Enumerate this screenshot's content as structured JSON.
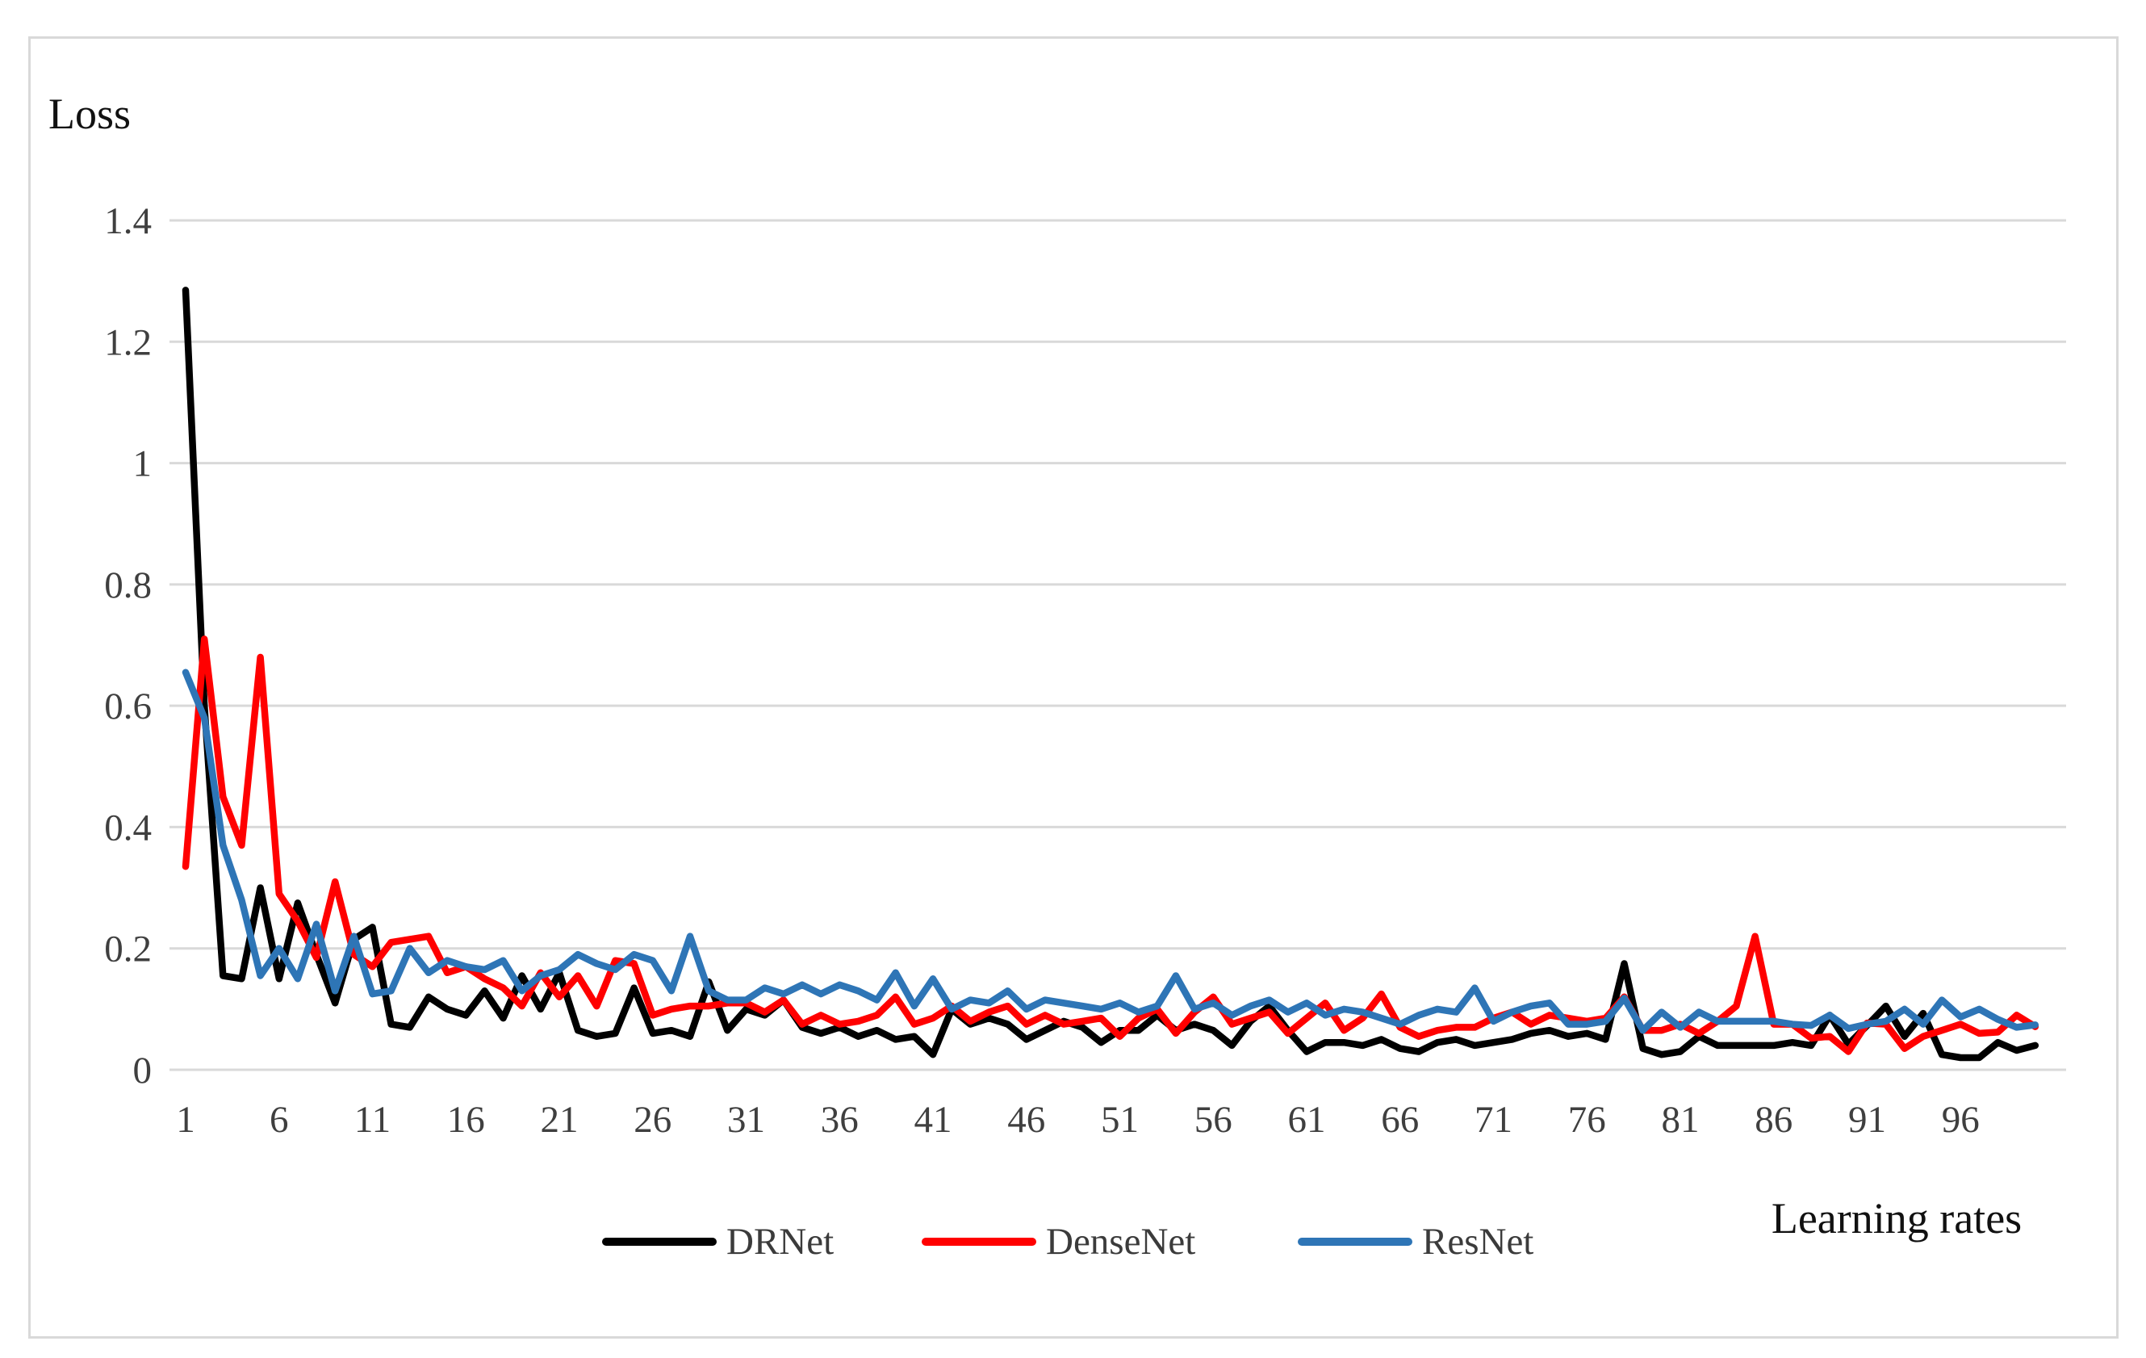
{
  "figure": {
    "y_axis_title": "Loss",
    "x_axis_title": "Learning rates"
  },
  "chart_data": {
    "type": "line",
    "title": "",
    "xlabel": "Learning rates",
    "ylabel": "Loss",
    "x_range": [
      1,
      100
    ],
    "ylim": [
      0,
      1.4
    ],
    "grid": true,
    "gridline_color": "#d9d9d9",
    "legend_position": "bottom-center",
    "y_ticks": [
      0,
      0.2,
      0.4,
      0.6,
      0.8,
      1,
      1.2,
      1.4
    ],
    "x_ticks": [
      1,
      6,
      11,
      16,
      21,
      26,
      31,
      36,
      41,
      46,
      51,
      56,
      61,
      66,
      71,
      76,
      81,
      86,
      91,
      96
    ],
    "series": [
      {
        "name": "DRNet",
        "color": "#000000",
        "values": [
          1.285,
          0.6,
          0.155,
          0.15,
          0.3,
          0.15,
          0.275,
          0.19,
          0.11,
          0.215,
          0.235,
          0.075,
          0.07,
          0.12,
          0.1,
          0.09,
          0.13,
          0.085,
          0.155,
          0.1,
          0.16,
          0.065,
          0.055,
          0.06,
          0.135,
          0.06,
          0.065,
          0.055,
          0.145,
          0.065,
          0.1,
          0.09,
          0.115,
          0.07,
          0.06,
          0.07,
          0.055,
          0.065,
          0.05,
          0.055,
          0.025,
          0.1,
          0.075,
          0.085,
          0.075,
          0.05,
          0.065,
          0.08,
          0.07,
          0.045,
          0.065,
          0.065,
          0.09,
          0.065,
          0.075,
          0.065,
          0.04,
          0.08,
          0.105,
          0.065,
          0.03,
          0.045,
          0.045,
          0.04,
          0.05,
          0.035,
          0.03,
          0.045,
          0.05,
          0.04,
          0.045,
          0.05,
          0.06,
          0.065,
          0.055,
          0.06,
          0.05,
          0.175,
          0.035,
          0.025,
          0.03,
          0.055,
          0.04,
          0.04,
          0.04,
          0.04,
          0.045,
          0.04,
          0.09,
          0.042,
          0.073,
          0.105,
          0.055,
          0.093,
          0.025,
          0.02,
          0.02,
          0.045,
          0.032,
          0.04
        ]
      },
      {
        "name": "DenseNet",
        "color": "#ff0000",
        "values": [
          0.335,
          0.71,
          0.45,
          0.37,
          0.68,
          0.29,
          0.245,
          0.185,
          0.31,
          0.19,
          0.17,
          0.21,
          0.215,
          0.22,
          0.16,
          0.17,
          0.15,
          0.135,
          0.105,
          0.16,
          0.12,
          0.155,
          0.105,
          0.18,
          0.175,
          0.09,
          0.1,
          0.105,
          0.105,
          0.11,
          0.11,
          0.095,
          0.115,
          0.075,
          0.09,
          0.075,
          0.08,
          0.09,
          0.12,
          0.075,
          0.085,
          0.105,
          0.08,
          0.095,
          0.105,
          0.075,
          0.09,
          0.075,
          0.08,
          0.085,
          0.055,
          0.085,
          0.1,
          0.06,
          0.095,
          0.12,
          0.075,
          0.085,
          0.095,
          0.06,
          0.085,
          0.11,
          0.065,
          0.085,
          0.125,
          0.07,
          0.055,
          0.065,
          0.07,
          0.07,
          0.085,
          0.095,
          0.075,
          0.09,
          0.085,
          0.08,
          0.085,
          0.12,
          0.065,
          0.065,
          0.075,
          0.06,
          0.08,
          0.105,
          0.22,
          0.075,
          0.075,
          0.052,
          0.055,
          0.03,
          0.077,
          0.075,
          0.035,
          0.055,
          0.065,
          0.075,
          0.06,
          0.062,
          0.09,
          0.071
        ]
      },
      {
        "name": "ResNet",
        "color": "#2e75b6",
        "values": [
          0.655,
          0.58,
          0.37,
          0.28,
          0.155,
          0.2,
          0.15,
          0.24,
          0.13,
          0.22,
          0.125,
          0.13,
          0.2,
          0.16,
          0.18,
          0.17,
          0.165,
          0.18,
          0.13,
          0.155,
          0.165,
          0.19,
          0.175,
          0.165,
          0.19,
          0.18,
          0.13,
          0.22,
          0.13,
          0.115,
          0.115,
          0.135,
          0.125,
          0.14,
          0.125,
          0.14,
          0.13,
          0.115,
          0.16,
          0.105,
          0.15,
          0.1,
          0.115,
          0.11,
          0.13,
          0.1,
          0.115,
          0.11,
          0.105,
          0.1,
          0.11,
          0.095,
          0.105,
          0.155,
          0.1,
          0.11,
          0.09,
          0.105,
          0.115,
          0.095,
          0.11,
          0.09,
          0.1,
          0.095,
          0.085,
          0.075,
          0.09,
          0.1,
          0.095,
          0.135,
          0.08,
          0.095,
          0.105,
          0.11,
          0.075,
          0.075,
          0.08,
          0.118,
          0.065,
          0.095,
          0.07,
          0.095,
          0.08,
          0.08,
          0.08,
          0.08,
          0.075,
          0.073,
          0.09,
          0.068,
          0.075,
          0.08,
          0.1,
          0.075,
          0.115,
          0.087,
          0.1,
          0.083,
          0.07,
          0.074
        ]
      }
    ]
  }
}
